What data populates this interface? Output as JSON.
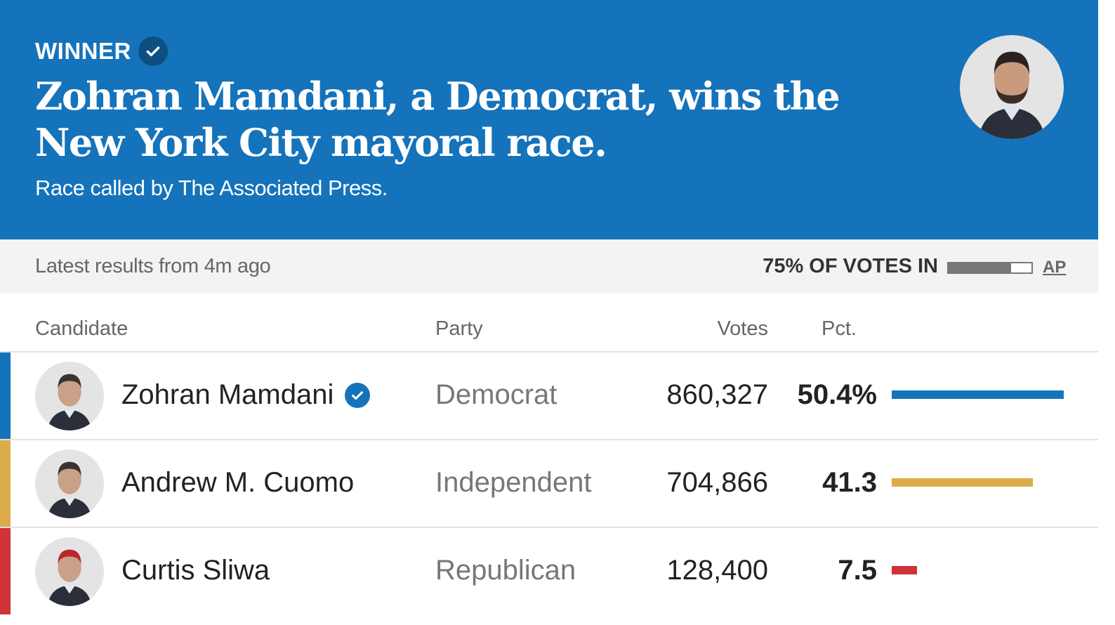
{
  "header": {
    "badge": "WINNER",
    "headline": "Zohran Mamdani, a Democrat, wins the New York City mayoral race.",
    "subhead": "Race called by The Associated Press.",
    "winner_photo": "Zohran Mamdani"
  },
  "status": {
    "latest": "Latest results from 4m ago",
    "votes_in_label": "75% OF VOTES IN",
    "votes_in_pct": 75,
    "source": "AP"
  },
  "columns": {
    "candidate": "Candidate",
    "party": "Party",
    "votes": "Votes",
    "pct": "Pct."
  },
  "candidates": [
    {
      "name": "Zohran Mamdani",
      "party": "Democrat",
      "votes": "860,327",
      "pct": "50.4%",
      "value": 50.4,
      "color": "#1473ba",
      "winner": true
    },
    {
      "name": "Andrew M. Cuomo",
      "party": "Independent",
      "votes": "704,866",
      "pct": "41.3",
      "value": 41.3,
      "color": "#dcac4a",
      "winner": false
    },
    {
      "name": "Curtis Sliwa",
      "party": "Republican",
      "votes": "128,400",
      "pct": "7.5",
      "value": 7.5,
      "color": "#cf3339",
      "winner": false
    }
  ],
  "colors": {
    "header_bg": "#1473ba",
    "democrat": "#1473ba",
    "independent": "#dcac4a",
    "republican": "#cf3339"
  }
}
